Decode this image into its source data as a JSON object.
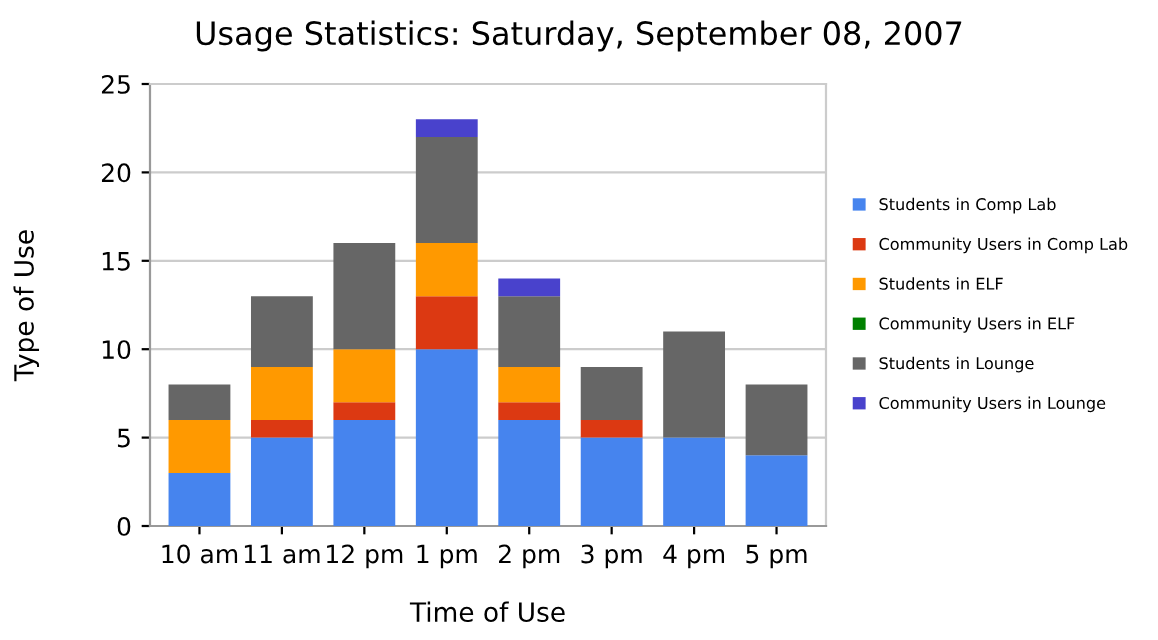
{
  "chart_data": {
    "type": "bar",
    "title": "Usage Statistics: Saturday, September 08, 2007",
    "xlabel": "Time of Use",
    "ylabel": "Type of Use",
    "categories": [
      "10 am",
      "11 am",
      "12 pm",
      "1 pm",
      "2 pm",
      "3 pm",
      "4 pm",
      "5 pm"
    ],
    "stacked": true,
    "ylim": [
      0,
      25
    ],
    "yticks": [
      0,
      5,
      10,
      15,
      20,
      25
    ],
    "grid": "y",
    "legend": "right",
    "series": [
      {
        "name": "Students in Comp Lab",
        "color": "#4684ee",
        "values": [
          3,
          5,
          6,
          10,
          6,
          5,
          5,
          4
        ]
      },
      {
        "name": "Community Users in Comp Lab",
        "color": "#dc3912",
        "values": [
          0,
          1,
          1,
          3,
          1,
          1,
          0,
          0
        ]
      },
      {
        "name": "Students in ELF",
        "color": "#ff9900",
        "values": [
          3,
          3,
          3,
          3,
          2,
          0,
          0,
          0
        ]
      },
      {
        "name": "Community Users in ELF",
        "color": "#008000",
        "values": [
          0,
          0,
          0,
          0,
          0,
          0,
          0,
          0
        ]
      },
      {
        "name": "Students in Lounge",
        "color": "#666666",
        "values": [
          2,
          4,
          6,
          6,
          4,
          3,
          6,
          4
        ]
      },
      {
        "name": "Community Users in Lounge",
        "color": "#4942cc",
        "values": [
          0,
          0,
          0,
          1,
          1,
          0,
          0,
          0
        ]
      }
    ]
  }
}
